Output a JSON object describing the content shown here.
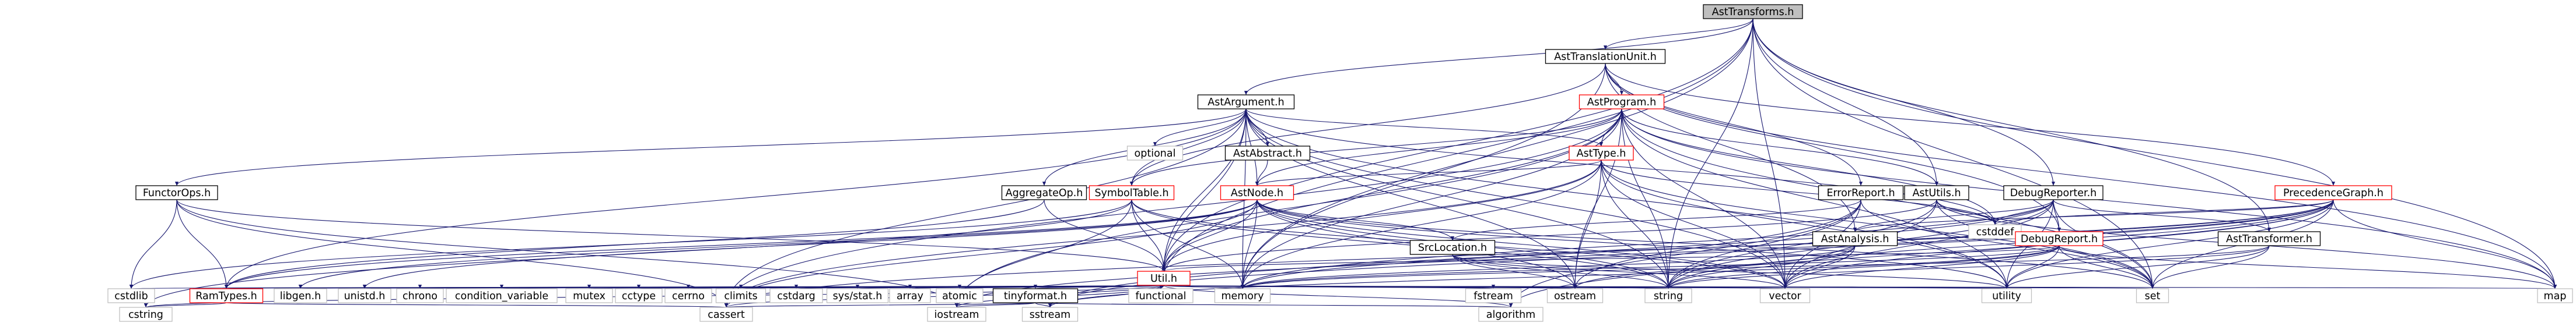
{
  "graph": {
    "nodes": [
      {
        "id": "AstTransforms_h",
        "label": "AstTransforms.h",
        "style": "root",
        "link": false
      },
      {
        "id": "AstTranslationUnit_h",
        "label": "AstTranslationUnit.h",
        "style": "normal",
        "link": true
      },
      {
        "id": "AstArgument_h",
        "label": "AstArgument.h",
        "style": "normal",
        "link": true
      },
      {
        "id": "AstProgram_h",
        "label": "AstProgram.h",
        "style": "red",
        "link": true
      },
      {
        "id": "optional",
        "label": "optional",
        "style": "plain",
        "link": false
      },
      {
        "id": "AstAbstract_h",
        "label": "AstAbstract.h",
        "style": "normal",
        "link": true
      },
      {
        "id": "AstType_h",
        "label": "AstType.h",
        "style": "red",
        "link": true
      },
      {
        "id": "FunctorOps_h",
        "label": "FunctorOps.h",
        "style": "normal",
        "link": true
      },
      {
        "id": "AggregateOp_h",
        "label": "AggregateOp.h",
        "style": "normal",
        "link": true
      },
      {
        "id": "SymbolTable_h",
        "label": "SymbolTable.h",
        "style": "red",
        "link": true
      },
      {
        "id": "AstNode_h",
        "label": "AstNode.h",
        "style": "red",
        "link": true
      },
      {
        "id": "ErrorReport_h",
        "label": "ErrorReport.h",
        "style": "normal",
        "link": true
      },
      {
        "id": "AstUtils_h",
        "label": "AstUtils.h",
        "style": "normal",
        "link": true
      },
      {
        "id": "DebugReporter_h",
        "label": "DebugReporter.h",
        "style": "normal",
        "link": true
      },
      {
        "id": "PrecedenceGraph_h",
        "label": "PrecedenceGraph.h",
        "style": "red",
        "link": true
      },
      {
        "id": "cstddef",
        "label": "cstddef",
        "style": "plain",
        "link": false
      },
      {
        "id": "AstAnalysis_h",
        "label": "AstAnalysis.h",
        "style": "normal",
        "link": true
      },
      {
        "id": "DebugReport_h",
        "label": "DebugReport.h",
        "style": "red",
        "link": true
      },
      {
        "id": "AstTransformer_h",
        "label": "AstTransformer.h",
        "style": "normal",
        "link": true
      },
      {
        "id": "SrcLocation_h",
        "label": "SrcLocation.h",
        "style": "normal",
        "link": true
      },
      {
        "id": "Util_h",
        "label": "Util.h",
        "style": "red",
        "link": true
      },
      {
        "id": "RamTypes_h",
        "label": "RamTypes.h",
        "style": "red",
        "link": true
      },
      {
        "id": "cstdlib",
        "label": "cstdlib",
        "style": "plain",
        "link": false
      },
      {
        "id": "libgen_h",
        "label": "libgen.h",
        "style": "plain",
        "link": false
      },
      {
        "id": "unistd_h",
        "label": "unistd.h",
        "style": "plain",
        "link": false
      },
      {
        "id": "chrono",
        "label": "chrono",
        "style": "plain",
        "link": false
      },
      {
        "id": "condition_variable",
        "label": "condition_variable",
        "style": "plain",
        "link": false
      },
      {
        "id": "mutex",
        "label": "mutex",
        "style": "plain",
        "link": false
      },
      {
        "id": "cctype",
        "label": "cctype",
        "style": "plain",
        "link": false
      },
      {
        "id": "cerrno",
        "label": "cerrno",
        "style": "plain",
        "link": false
      },
      {
        "id": "climits",
        "label": "climits",
        "style": "plain",
        "link": false
      },
      {
        "id": "cstdarg",
        "label": "cstdarg",
        "style": "plain",
        "link": false
      },
      {
        "id": "sys_stat_h",
        "label": "sys/stat.h",
        "style": "plain",
        "link": false
      },
      {
        "id": "array",
        "label": "array",
        "style": "plain",
        "link": false
      },
      {
        "id": "atomic",
        "label": "atomic",
        "style": "plain",
        "link": false
      },
      {
        "id": "tinyformat_h",
        "label": "tinyformat.h",
        "style": "normal",
        "link": true
      },
      {
        "id": "functional",
        "label": "functional",
        "style": "plain",
        "link": false
      },
      {
        "id": "memory",
        "label": "memory",
        "style": "plain",
        "link": false
      },
      {
        "id": "fstream",
        "label": "fstream",
        "style": "plain",
        "link": false
      },
      {
        "id": "ostream",
        "label": "ostream",
        "style": "plain",
        "link": false
      },
      {
        "id": "string",
        "label": "string",
        "style": "plain",
        "link": false
      },
      {
        "id": "vector",
        "label": "vector",
        "style": "plain",
        "link": false
      },
      {
        "id": "utility",
        "label": "utility",
        "style": "plain",
        "link": false
      },
      {
        "id": "set",
        "label": "set",
        "style": "plain",
        "link": false
      },
      {
        "id": "map",
        "label": "map",
        "style": "plain",
        "link": false
      },
      {
        "id": "cstring",
        "label": "cstring",
        "style": "plain",
        "link": false
      },
      {
        "id": "cassert",
        "label": "cassert",
        "style": "plain",
        "link": false
      },
      {
        "id": "iostream",
        "label": "iostream",
        "style": "plain",
        "link": false
      },
      {
        "id": "sstream",
        "label": "sstream",
        "style": "plain",
        "link": false
      },
      {
        "id": "algorithm",
        "label": "algorithm",
        "style": "plain",
        "link": false
      }
    ],
    "edges": [
      [
        "AstTransforms_h",
        "AstTranslationUnit_h"
      ],
      [
        "AstTransforms_h",
        "AstArgument_h"
      ],
      [
        "AstTransforms_h",
        "AstUtils_h"
      ],
      [
        "AstTransforms_h",
        "DebugReporter_h"
      ],
      [
        "AstTransforms_h",
        "AstTransformer_h"
      ],
      [
        "AstTransforms_h",
        "Util_h"
      ],
      [
        "AstTransforms_h",
        "functional"
      ],
      [
        "AstTransforms_h",
        "memory"
      ],
      [
        "AstTransforms_h",
        "string"
      ],
      [
        "AstTransforms_h",
        "vector"
      ],
      [
        "AstTransforms_h",
        "set"
      ],
      [
        "AstTransforms_h",
        "map"
      ],
      [
        "AstTranslationUnit_h",
        "AstProgram_h"
      ],
      [
        "AstTranslationUnit_h",
        "ErrorReport_h"
      ],
      [
        "AstTranslationUnit_h",
        "DebugReport_h"
      ],
      [
        "AstTranslationUnit_h",
        "PrecedenceGraph_h"
      ],
      [
        "AstTranslationUnit_h",
        "AstAnalysis_h"
      ],
      [
        "AstTranslationUnit_h",
        "SymbolTable_h"
      ],
      [
        "AstTranslationUnit_h",
        "memory"
      ],
      [
        "AstTranslationUnit_h",
        "map"
      ],
      [
        "AstArgument_h",
        "optional"
      ],
      [
        "AstArgument_h",
        "AstAbstract_h"
      ],
      [
        "AstArgument_h",
        "AstNode_h"
      ],
      [
        "AstArgument_h",
        "AstType_h"
      ],
      [
        "AstArgument_h",
        "FunctorOps_h"
      ],
      [
        "AstArgument_h",
        "AggregateOp_h"
      ],
      [
        "AstArgument_h",
        "SymbolTable_h"
      ],
      [
        "AstArgument_h",
        "Util_h"
      ],
      [
        "AstArgument_h",
        "RamTypes_h"
      ],
      [
        "AstArgument_h",
        "cstddef"
      ],
      [
        "AstArgument_h",
        "functional"
      ],
      [
        "AstArgument_h",
        "memory"
      ],
      [
        "AstArgument_h",
        "ostream"
      ],
      [
        "AstArgument_h",
        "string"
      ],
      [
        "AstArgument_h",
        "vector"
      ],
      [
        "AstArgument_h",
        "utility"
      ],
      [
        "AstArgument_h",
        "cassert"
      ],
      [
        "AstAbstract_h",
        "AstNode_h"
      ],
      [
        "AstProgram_h",
        "AstType_h"
      ],
      [
        "AstProgram_h",
        "AstNode_h"
      ],
      [
        "AstProgram_h",
        "AstUtils_h"
      ],
      [
        "AstProgram_h",
        "Util_h"
      ],
      [
        "AstProgram_h",
        "cstddef"
      ],
      [
        "AstProgram_h",
        "memory"
      ],
      [
        "AstProgram_h",
        "ostream"
      ],
      [
        "AstProgram_h",
        "string"
      ],
      [
        "AstProgram_h",
        "vector"
      ],
      [
        "AstProgram_h",
        "utility"
      ],
      [
        "AstProgram_h",
        "set"
      ],
      [
        "AstProgram_h",
        "map"
      ],
      [
        "AstProgram_h",
        "cassert"
      ],
      [
        "AstProgram_h",
        "iostream"
      ],
      [
        "AstProgram_h",
        "SymbolTable_h"
      ],
      [
        "AstType_h",
        "AstNode_h"
      ],
      [
        "AstType_h",
        "Util_h"
      ],
      [
        "AstType_h",
        "memory"
      ],
      [
        "AstType_h",
        "ostream"
      ],
      [
        "AstType_h",
        "string"
      ],
      [
        "AstType_h",
        "vector"
      ],
      [
        "AstType_h",
        "utility"
      ],
      [
        "AstType_h",
        "set"
      ],
      [
        "AstType_h",
        "cassert"
      ],
      [
        "AstType_h",
        "cstddef"
      ],
      [
        "FunctorOps_h",
        "RamTypes_h"
      ],
      [
        "FunctorOps_h",
        "cstdlib"
      ],
      [
        "FunctorOps_h",
        "cassert"
      ],
      [
        "FunctorOps_h",
        "iostream"
      ],
      [
        "FunctorOps_h",
        "Util_h"
      ],
      [
        "AggregateOp_h",
        "Util_h"
      ],
      [
        "AggregateOp_h",
        "RamTypes_h"
      ],
      [
        "SymbolTable_h",
        "Util_h"
      ],
      [
        "SymbolTable_h",
        "cstdlib"
      ],
      [
        "SymbolTable_h",
        "cstring"
      ],
      [
        "SymbolTable_h",
        "iostream"
      ],
      [
        "SymbolTable_h",
        "memory"
      ],
      [
        "SymbolTable_h",
        "string"
      ],
      [
        "SymbolTable_h",
        "vector"
      ],
      [
        "AstNode_h",
        "SrcLocation_h"
      ],
      [
        "AstNode_h",
        "Util_h"
      ],
      [
        "AstNode_h",
        "memory"
      ],
      [
        "AstNode_h",
        "ostream"
      ],
      [
        "AstNode_h",
        "string"
      ],
      [
        "AstNode_h",
        "vector"
      ],
      [
        "AstNode_h",
        "utility"
      ],
      [
        "AstNode_h",
        "set"
      ],
      [
        "AstNode_h",
        "cassert"
      ],
      [
        "AstNode_h",
        "libgen_h"
      ],
      [
        "AstNode_h",
        "unistd_h"
      ],
      [
        "AstNode_h",
        "RamTypes_h"
      ],
      [
        "ErrorReport_h",
        "SrcLocation_h"
      ],
      [
        "ErrorReport_h",
        "string"
      ],
      [
        "ErrorReport_h",
        "vector"
      ],
      [
        "ErrorReport_h",
        "set"
      ],
      [
        "ErrorReport_h",
        "ostream"
      ],
      [
        "ErrorReport_h",
        "algorithm"
      ],
      [
        "AstUtils_h",
        "Util_h"
      ],
      [
        "AstUtils_h",
        "cstddef"
      ],
      [
        "AstUtils_h",
        "string"
      ],
      [
        "AstUtils_h",
        "vector"
      ],
      [
        "AstUtils_h",
        "set"
      ],
      [
        "AstUtils_h",
        "map"
      ],
      [
        "DebugReporter_h",
        "DebugReport_h"
      ],
      [
        "DebugReporter_h",
        "AstTransformer_h"
      ],
      [
        "DebugReporter_h",
        "AstAnalysis_h"
      ],
      [
        "DebugReporter_h",
        "memory"
      ],
      [
        "DebugReporter_h",
        "string"
      ],
      [
        "DebugReporter_h",
        "vector"
      ],
      [
        "DebugReporter_h",
        "utility"
      ],
      [
        "DebugReporter_h",
        "set"
      ],
      [
        "DebugReporter_h",
        "sstream"
      ],
      [
        "DebugReporter_h",
        "cstddef"
      ],
      [
        "PrecedenceGraph_h",
        "AstAnalysis_h"
      ],
      [
        "PrecedenceGraph_h",
        "string"
      ],
      [
        "PrecedenceGraph_h",
        "vector"
      ],
      [
        "PrecedenceGraph_h",
        "set"
      ],
      [
        "PrecedenceGraph_h",
        "map"
      ],
      [
        "PrecedenceGraph_h",
        "memory"
      ],
      [
        "PrecedenceGraph_h",
        "utility"
      ],
      [
        "PrecedenceGraph_h",
        "cassert"
      ],
      [
        "PrecedenceGraph_h",
        "sstream"
      ],
      [
        "PrecedenceGraph_h",
        "iostream"
      ],
      [
        "PrecedenceGraph_h",
        "algorithm"
      ],
      [
        "PrecedenceGraph_h",
        "cstddef"
      ],
      [
        "AstAnalysis_h",
        "ostream"
      ],
      [
        "AstAnalysis_h",
        "string"
      ],
      [
        "AstAnalysis_h",
        "memory"
      ],
      [
        "AstAnalysis_h",
        "vector"
      ],
      [
        "DebugReport_h",
        "memory"
      ],
      [
        "DebugReport_h",
        "string"
      ],
      [
        "DebugReport_h",
        "vector"
      ],
      [
        "DebugReport_h",
        "sstream"
      ],
      [
        "DebugReport_h",
        "utility"
      ],
      [
        "DebugReport_h",
        "set"
      ],
      [
        "DebugReport_h",
        "map"
      ],
      [
        "DebugReport_h",
        "Util_h"
      ],
      [
        "AstTransformer_h",
        "string"
      ],
      [
        "AstTransformer_h",
        "utility"
      ],
      [
        "AstTransformer_h",
        "set"
      ],
      [
        "AstTransformer_h",
        "memory"
      ],
      [
        "SrcLocation_h",
        "ostream"
      ],
      [
        "SrcLocation_h",
        "string"
      ],
      [
        "SrcLocation_h",
        "utility"
      ],
      [
        "SrcLocation_h",
        "vector"
      ],
      [
        "Util_h",
        "RamTypes_h"
      ],
      [
        "Util_h",
        "cstdlib"
      ],
      [
        "Util_h",
        "libgen_h"
      ],
      [
        "Util_h",
        "unistd_h"
      ],
      [
        "Util_h",
        "chrono"
      ],
      [
        "Util_h",
        "condition_variable"
      ],
      [
        "Util_h",
        "mutex"
      ],
      [
        "Util_h",
        "cctype"
      ],
      [
        "Util_h",
        "cerrno"
      ],
      [
        "Util_h",
        "climits"
      ],
      [
        "Util_h",
        "cstdarg"
      ],
      [
        "Util_h",
        "sys_stat_h"
      ],
      [
        "Util_h",
        "array"
      ],
      [
        "Util_h",
        "atomic"
      ],
      [
        "Util_h",
        "tinyformat_h"
      ],
      [
        "Util_h",
        "functional"
      ],
      [
        "Util_h",
        "memory"
      ],
      [
        "Util_h",
        "fstream"
      ],
      [
        "Util_h",
        "ostream"
      ],
      [
        "Util_h",
        "string"
      ],
      [
        "Util_h",
        "vector"
      ],
      [
        "Util_h",
        "utility"
      ],
      [
        "Util_h",
        "set"
      ],
      [
        "Util_h",
        "map"
      ],
      [
        "Util_h",
        "cstring"
      ],
      [
        "Util_h",
        "cassert"
      ],
      [
        "Util_h",
        "iostream"
      ],
      [
        "Util_h",
        "sstream"
      ],
      [
        "Util_h",
        "algorithm"
      ],
      [
        "RamTypes_h",
        "cstring"
      ],
      [
        "RamTypes_h",
        "cassert"
      ],
      [
        "tinyformat_h",
        "cassert"
      ],
      [
        "tinyformat_h",
        "iostream"
      ],
      [
        "tinyformat_h",
        "sstream"
      ],
      [
        "tinyformat_h",
        "algorithm"
      ]
    ]
  }
}
